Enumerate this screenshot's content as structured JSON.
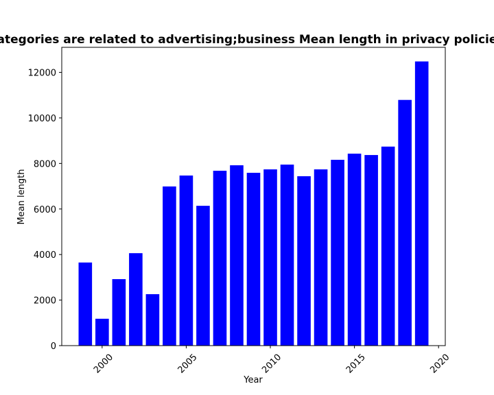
{
  "chart_data": {
    "type": "bar",
    "title": "categories are related to advertising;business Mean length in privacy policies",
    "xlabel": "Year",
    "ylabel": "Mean length",
    "x": [
      1999,
      2000,
      2001,
      2002,
      2003,
      2004,
      2005,
      2006,
      2007,
      2008,
      2009,
      2010,
      2011,
      2012,
      2013,
      2014,
      2015,
      2016,
      2017,
      2018,
      2019
    ],
    "values": [
      3650,
      1180,
      2920,
      4060,
      2260,
      6990,
      7470,
      6140,
      7680,
      7920,
      7590,
      7740,
      7950,
      7440,
      7740,
      8160,
      8430,
      8370,
      8740,
      10790,
      12480
    ],
    "xlim": [
      1997.6,
      2020.4
    ],
    "ylim": [
      0,
      13100
    ],
    "xticks": [
      2000,
      2005,
      2010,
      2015,
      2020
    ],
    "yticks": [
      0,
      2000,
      4000,
      6000,
      8000,
      10000,
      12000
    ],
    "bar_color": "#0000ff",
    "grid": false
  }
}
